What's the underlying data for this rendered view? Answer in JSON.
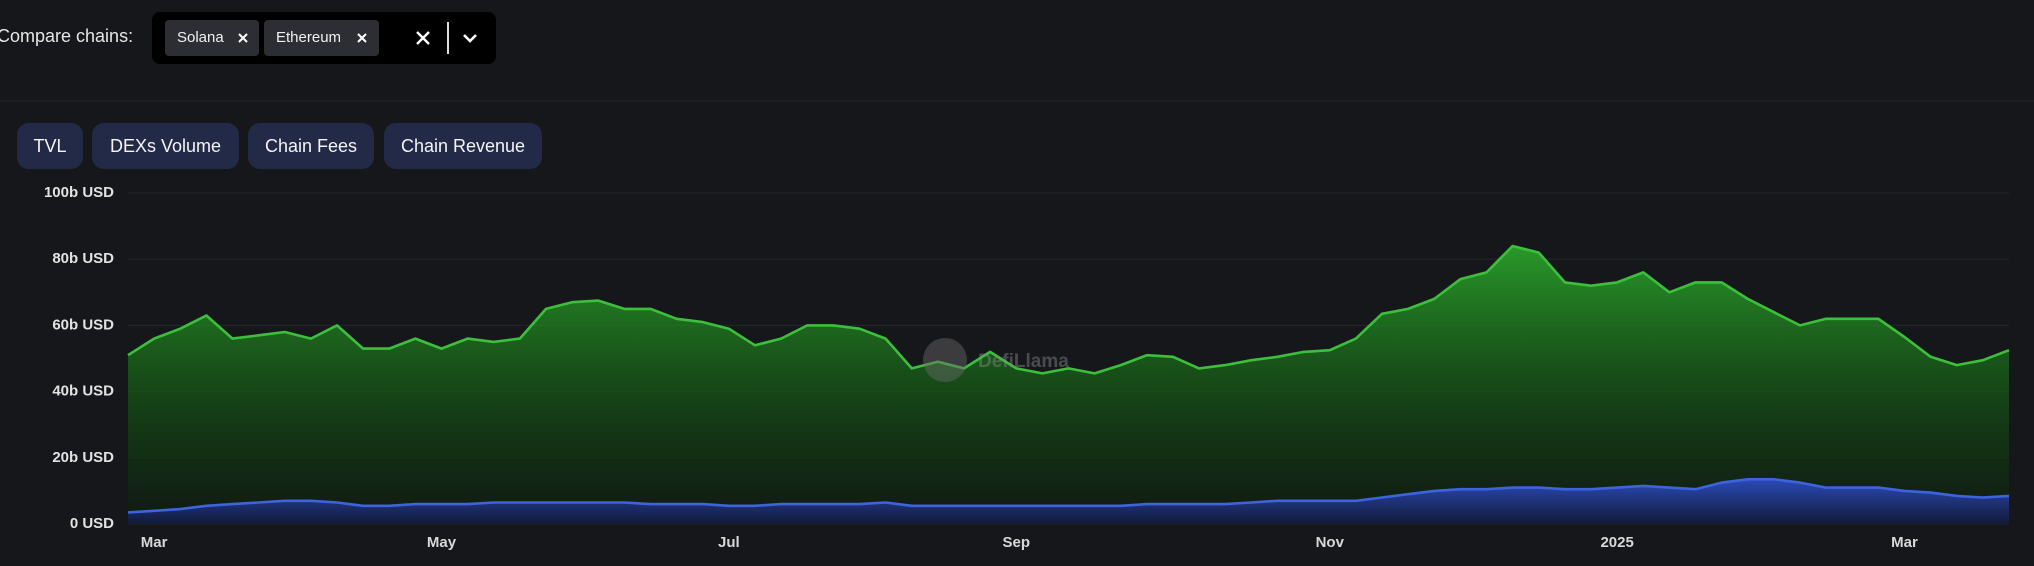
{
  "compare_label": "Compare chains:",
  "tabs": [
    "TVL",
    "DEXs Volume",
    "Chain Fees",
    "Chain Revenue"
  ],
  "chart_data": {
    "type": "area",
    "watermark": "DefiLlama",
    "categories": [
      null,
      "Mar",
      null,
      null,
      null,
      null,
      null,
      null,
      null,
      null,
      null,
      null,
      "May",
      null,
      null,
      null,
      null,
      null,
      null,
      null,
      null,
      null,
      null,
      "Jul",
      null,
      null,
      null,
      null,
      null,
      null,
      null,
      null,
      null,
      null,
      "Sep",
      null,
      null,
      null,
      null,
      null,
      null,
      null,
      null,
      null,
      null,
      null,
      "Nov",
      null,
      null,
      null,
      null,
      null,
      null,
      null,
      null,
      null,
      null,
      "2025",
      null,
      null,
      null,
      null,
      null,
      null,
      null,
      null,
      null,
      null,
      "Mar",
      null,
      null,
      null,
      null
    ],
    "series": [
      {
        "name": "Solana",
        "color": "#3cc03c",
        "values": [
          51,
          56,
          59,
          63,
          56,
          57,
          58,
          56,
          60,
          53,
          53,
          56,
          53,
          56,
          55,
          56,
          65,
          67,
          67.5,
          65,
          65,
          62,
          61,
          59,
          54,
          56,
          60,
          60,
          59,
          56,
          47,
          49,
          47,
          52,
          47,
          45.5,
          47,
          45.5,
          48,
          51,
          50.5,
          47,
          48,
          49.5,
          50.5,
          52,
          52.5,
          56,
          63.5,
          65,
          68,
          74,
          76,
          84,
          82,
          73,
          72,
          73,
          76,
          70,
          73,
          73,
          68,
          64,
          60,
          62,
          62,
          62,
          56.5,
          50.5,
          48,
          49.5,
          52.5
        ]
      },
      {
        "name": "Ethereum",
        "color": "#3d63dd",
        "values": [
          3.5,
          4,
          4.5,
          5.5,
          6,
          6.5,
          7,
          7,
          6.5,
          5.5,
          5.5,
          6,
          6,
          6,
          6.5,
          6.5,
          6.5,
          6.5,
          6.5,
          6.5,
          6,
          6,
          6,
          5.5,
          5.5,
          6,
          6,
          6,
          6,
          6.5,
          5.5,
          5.5,
          5.5,
          5.5,
          5.5,
          5.5,
          5.5,
          5.5,
          5.5,
          6,
          6,
          6,
          6,
          6.5,
          7,
          7,
          7,
          7,
          8,
          9,
          10,
          10.5,
          10.5,
          11,
          11,
          10.5,
          10.5,
          11,
          11.5,
          11,
          10.5,
          12.5,
          13.5,
          13.5,
          12.5,
          11,
          11,
          11,
          10,
          9.5,
          8.5,
          8,
          8.5
        ]
      }
    ],
    "ylim": [
      0,
      100
    ],
    "yticks": [
      {
        "value": 0,
        "label": "0 USD"
      },
      {
        "value": 20,
        "label": "20b USD"
      },
      {
        "value": 40,
        "label": "40b USD"
      },
      {
        "value": 60,
        "label": "60b USD"
      },
      {
        "value": 80,
        "label": "80b USD"
      },
      {
        "value": 100,
        "label": "100b USD"
      }
    ],
    "grid": true
  }
}
